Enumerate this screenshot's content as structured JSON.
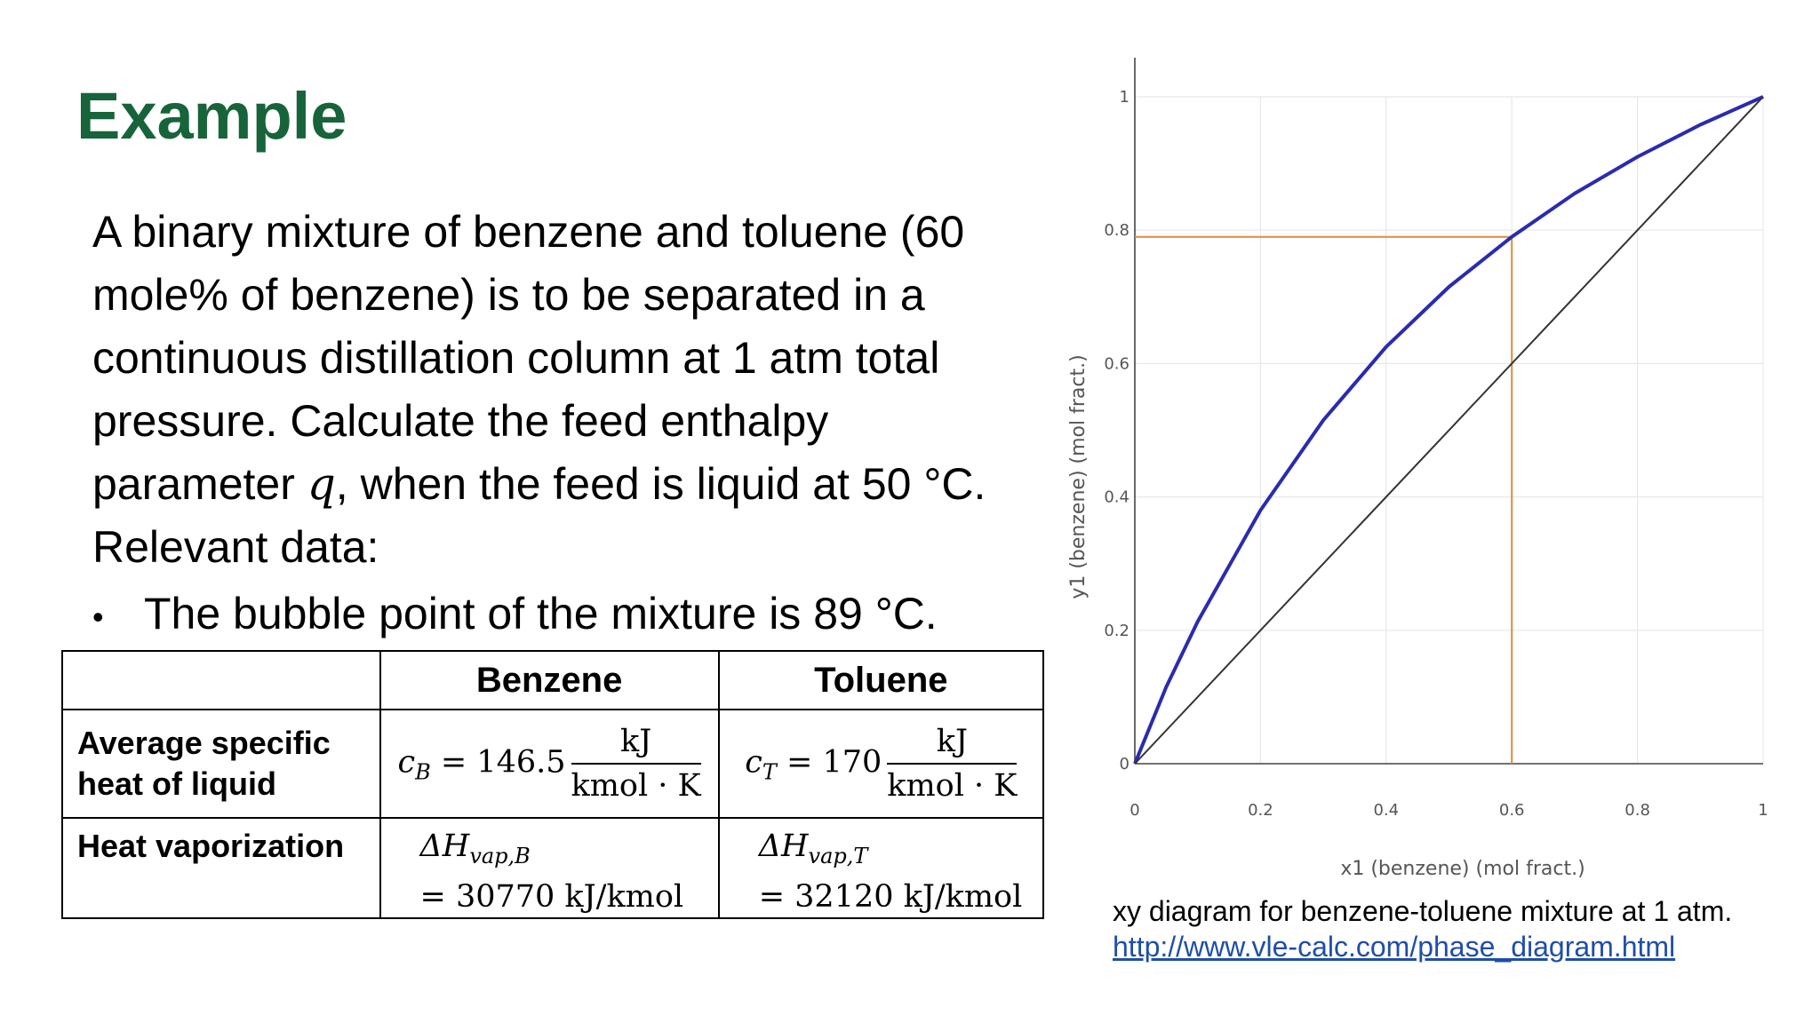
{
  "slide": {
    "title": "Example",
    "paragraph_before_q": "A binary mixture of benzene and toluene (60 mole% of benzene) is to be separated in a continuous distillation column at 1 atm total pressure. Calculate the feed enthalpy parameter ",
    "q_symbol": "q",
    "paragraph_after_q": ", when the feed is liquid at 50 °C.",
    "relevant_label": "Relevant data:",
    "bullet": "•",
    "bullet_text": "The bubble point of the mixture is 89 °C."
  },
  "table": {
    "headers": [
      "",
      "Benzene",
      "Toluene"
    ],
    "row1_label_line1": "Average specific",
    "row1_label_line2": "heat of liquid",
    "row2_label": "Heat vaporization",
    "cb_var": "c",
    "cb_sub": "B",
    "cb_eq": " = 146.5",
    "ct_var": "c",
    "ct_sub": "T",
    "ct_eq": " = 170",
    "unit_num": "kJ",
    "unit_den": "kmol · K",
    "hb_sym": "ΔH",
    "hb_sub": "vap,B",
    "hb_val": "= 30770 kJ/kmol",
    "ht_sym": "ΔH",
    "ht_sub": "vap,T",
    "ht_val": "= 32120 kJ/kmol"
  },
  "caption": {
    "text": "xy diagram for benzene-toluene mixture at 1 atm.",
    "link": "http://www.vle-calc.com/phase_diagram.html"
  },
  "chart_data": {
    "type": "line",
    "xlabel": "x1 (benzene) (mol fract.)",
    "ylabel": "y1 (benzene) (mol fract.)",
    "xlim": [
      0,
      1
    ],
    "ylim": [
      0,
      1
    ],
    "xticks": [
      "0",
      "0.2",
      "0.4",
      "0.6",
      "0.8",
      "1"
    ],
    "yticks": [
      "0",
      "0.2",
      "0.4",
      "0.6",
      "0.8",
      "1"
    ],
    "grid": true,
    "series": [
      {
        "color": "#2b2bb0",
        "x": [
          0,
          0.05,
          0.1,
          0.2,
          0.3,
          0.4,
          0.5,
          0.6,
          0.7,
          0.8,
          0.9,
          1.0
        ],
        "y": [
          0,
          0.115,
          0.213,
          0.38,
          0.515,
          0.625,
          0.715,
          0.79,
          0.855,
          0.91,
          0.958,
          1.0
        ]
      },
      {
        "color": "#333333",
        "x": [
          0,
          1
        ],
        "y": [
          0,
          1
        ]
      }
    ],
    "annotations": [
      {
        "type": "guide-lines",
        "x": 0.6,
        "y": 0.79,
        "color": "#e08a3c"
      }
    ]
  }
}
